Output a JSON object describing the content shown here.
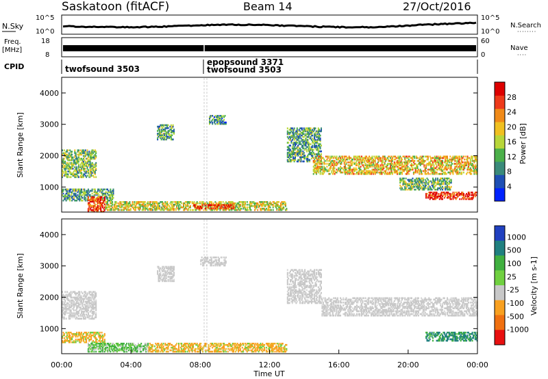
{
  "header": {
    "station": "Saskatoon (fitACF)",
    "beam": "Beam 14",
    "date": "27/Oct/2016"
  },
  "top_panels": {
    "nsky": {
      "label": "N.Sky",
      "ticks": [
        "10^5",
        "10^0"
      ],
      "right_label": "N.Search",
      "right_ticks": [
        "10^5",
        "10^0"
      ]
    },
    "freq": {
      "label_line1": "Freq.",
      "label_line2": "[MHz]",
      "ticks": [
        "18",
        "8"
      ],
      "right_label": "Nave",
      "right_ticks": [
        "60",
        "0"
      ]
    },
    "cpid": {
      "label": "CPID",
      "entries": [
        {
          "text": "twofsound 3503",
          "time": 0.1
        },
        {
          "text": "epopsound 3371",
          "time": 8.3
        },
        {
          "text": "twofsound 3503",
          "time": 8.3
        }
      ]
    }
  },
  "chart_data": [
    {
      "type": "heatmap",
      "title": "",
      "ylabel": "Slant Range [km]",
      "xlabel": "",
      "xlim": [
        0,
        24
      ],
      "ylim": [
        200,
        4500
      ],
      "y_ticks": [
        "1000",
        "2000",
        "3000",
        "4000"
      ],
      "colorbar": {
        "label": "Power [dB]",
        "range": [
          0,
          30
        ],
        "ticks": [
          "4",
          "8",
          "12",
          "16",
          "20",
          "24",
          "28"
        ],
        "colors": [
          "#0022ff",
          "#1e4fb4",
          "#3a8a7a",
          "#4cb04a",
          "#b8d63a",
          "#f0c020",
          "#f08a18",
          "#ee3a1a",
          "#dd0000"
        ]
      },
      "regions": [
        {
          "t": [
            0.0,
            2.0
          ],
          "r": [
            1300,
            2200
          ],
          "level": 0.42
        },
        {
          "t": [
            0.0,
            3.0
          ],
          "r": [
            550,
            950
          ],
          "level": 0.35
        },
        {
          "t": [
            1.5,
            2.5
          ],
          "r": [
            200,
            700
          ],
          "level": 0.85
        },
        {
          "t": [
            2.5,
            13.0
          ],
          "r": [
            250,
            550
          ],
          "level": 0.55
        },
        {
          "t": [
            7.6,
            10.0
          ],
          "r": [
            300,
            450
          ],
          "level": 0.9
        },
        {
          "t": [
            5.5,
            6.5
          ],
          "r": [
            2500,
            3000
          ],
          "level": 0.35
        },
        {
          "t": [
            8.5,
            9.5
          ],
          "r": [
            3000,
            3300
          ],
          "level": 0.3
        },
        {
          "t": [
            13.0,
            15.0
          ],
          "r": [
            1800,
            2900
          ],
          "level": 0.35
        },
        {
          "t": [
            14.5,
            24.0
          ],
          "r": [
            1400,
            2000
          ],
          "level": 0.6
        },
        {
          "t": [
            21.0,
            24.0
          ],
          "r": [
            600,
            850
          ],
          "level": 0.9
        },
        {
          "t": [
            19.5,
            22.5
          ],
          "r": [
            900,
            1300
          ],
          "level": 0.4
        }
      ]
    },
    {
      "type": "heatmap",
      "title": "",
      "ylabel": "Slant Range [km]",
      "xlabel": "Time UT",
      "xlim": [
        0,
        24
      ],
      "ylim": [
        200,
        4500
      ],
      "x_ticks": [
        "00:00",
        "04:00",
        "08:00",
        "12:00",
        "16:00",
        "20:00",
        "00:00"
      ],
      "y_ticks": [
        "1000",
        "2000",
        "3000",
        "4000"
      ],
      "colorbar": {
        "label": "Velocity [m s-1]",
        "ticks": [
          "1000",
          "500",
          "100",
          "25",
          "-25",
          "-100",
          "-500",
          "-1000"
        ],
        "colors": [
          "#2040c0",
          "#208080",
          "#40b040",
          "#70d040",
          "#c8c8c8",
          "#f8a020",
          "#f07010",
          "#e81010"
        ]
      },
      "regions": [
        {
          "t": [
            0.0,
            2.0
          ],
          "r": [
            1300,
            2200
          ],
          "vel": "ground"
        },
        {
          "t": [
            0.0,
            2.5
          ],
          "r": [
            550,
            900
          ],
          "vel": "neg-small"
        },
        {
          "t": [
            1.5,
            5.0
          ],
          "r": [
            250,
            550
          ],
          "vel": "pos-small"
        },
        {
          "t": [
            5.0,
            13.0
          ],
          "r": [
            250,
            550
          ],
          "vel": "neg-small"
        },
        {
          "t": [
            13.0,
            15.0
          ],
          "r": [
            1800,
            2900
          ],
          "vel": "ground"
        },
        {
          "t": [
            15.0,
            24.0
          ],
          "r": [
            1400,
            2000
          ],
          "vel": "ground"
        },
        {
          "t": [
            21.0,
            24.0
          ],
          "r": [
            600,
            900
          ],
          "vel": "pos-mid"
        },
        {
          "t": [
            8.0,
            9.5
          ],
          "r": [
            3000,
            3300
          ],
          "vel": "ground"
        },
        {
          "t": [
            5.5,
            6.5
          ],
          "r": [
            2500,
            3000
          ],
          "vel": "ground"
        }
      ]
    }
  ]
}
